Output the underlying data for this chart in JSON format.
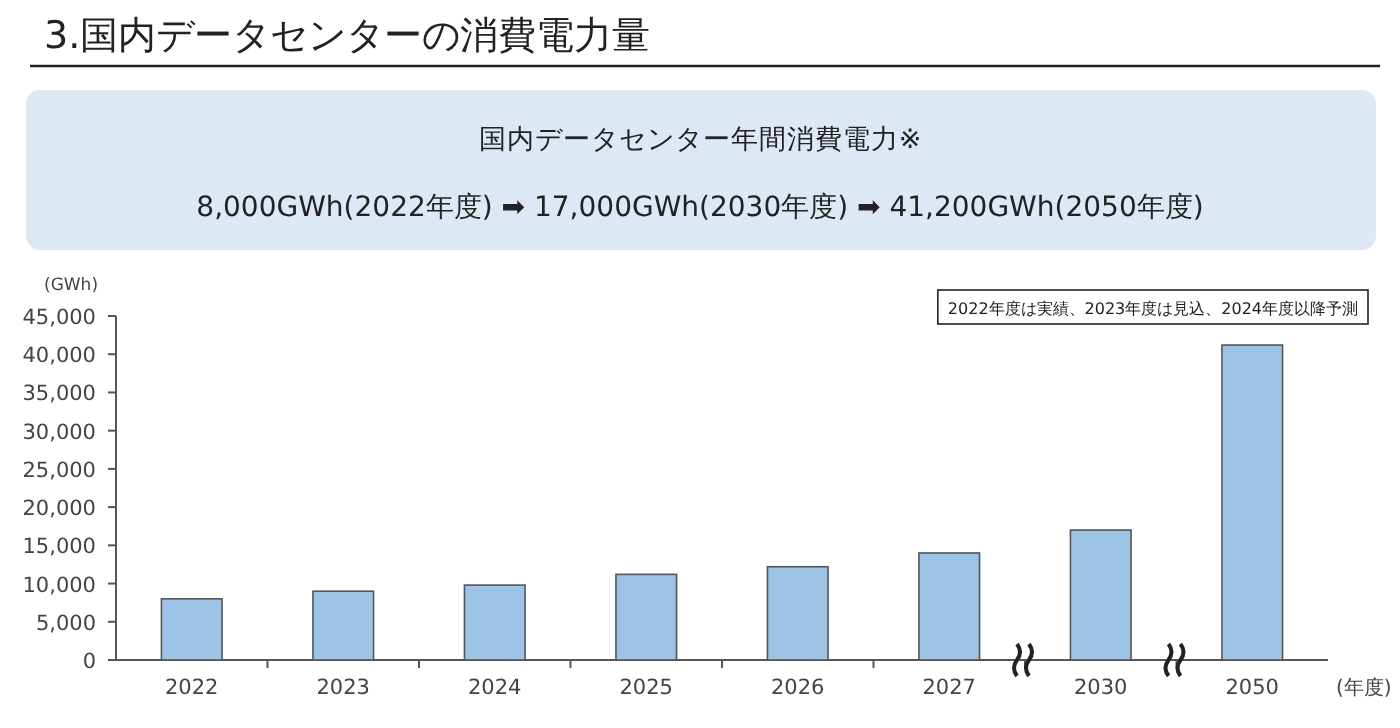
{
  "chart_data": {
    "type": "bar",
    "title": "3.国内データセンターの消費電力量",
    "subtitle": "国内データセンター年間消費電力※",
    "annotations": [
      "8,000GWh(2022年度)  ➡  17,000GWh(2030年度)  ➡  41,200GWh(2050年度)",
      "2022年度は実績、2023年度は見込、2024年度以降予測"
    ],
    "ylabel": "(GWh)",
    "xlabel": "(年度)",
    "categories": [
      "2022",
      "2023",
      "2024",
      "2025",
      "2026",
      "2027",
      "2030",
      "2050"
    ],
    "values": [
      8000,
      9000,
      9800,
      11200,
      12200,
      14000,
      17000,
      41200
    ],
    "color": "#9dc3e6",
    "ylim": [
      0,
      45000
    ],
    "yticks": [
      {
        "value": 0,
        "label": "0"
      },
      {
        "value": 5000,
        "label": "5,000"
      },
      {
        "value": 10000,
        "label": "10,000"
      },
      {
        "value": 15000,
        "label": "15,000"
      },
      {
        "value": 20000,
        "label": "20,000"
      },
      {
        "value": 25000,
        "label": "25,000"
      },
      {
        "value": 30000,
        "label": "30,000"
      },
      {
        "value": 35000,
        "label": "35,000"
      },
      {
        "value": 40000,
        "label": "40,000"
      },
      {
        "value": 45000,
        "label": "45,000"
      }
    ],
    "grid": false
  }
}
